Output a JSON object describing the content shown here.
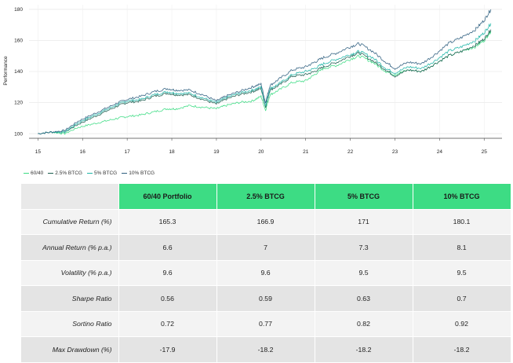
{
  "chart_data": {
    "type": "line",
    "ylabel": "Performance",
    "xlabel": "",
    "ylim": [
      97,
      183
    ],
    "xlim": [
      14.8,
      25.4
    ],
    "y_ticks": [
      100,
      120,
      140,
      160,
      180
    ],
    "x_ticks": [
      15,
      16,
      17,
      18,
      19,
      20,
      21,
      22,
      23,
      24,
      25
    ],
    "x_tick_labels": [
      "15",
      "16",
      "17",
      "18",
      "19",
      "20",
      "21",
      "22",
      "23",
      "24",
      "25"
    ],
    "grid": true,
    "legend_position": "bottom-left",
    "base_value": 100,
    "x": [
      15.0,
      15.3,
      15.6,
      15.9,
      16.2,
      16.5,
      16.8,
      17.0,
      17.3,
      17.6,
      17.9,
      18.1,
      18.4,
      18.7,
      19.0,
      19.2,
      19.5,
      19.8,
      20.0,
      20.1,
      20.2,
      20.4,
      20.7,
      21.0,
      21.2,
      21.4,
      21.7,
      22.0,
      22.2,
      22.5,
      22.8,
      23.0,
      23.3,
      23.6,
      23.9,
      24.2,
      24.5,
      24.8,
      25.0,
      25.15
    ],
    "series": [
      {
        "name": "60/40",
        "color": "#3ddc84",
        "values": [
          100,
          101,
          100,
          104,
          106,
          108,
          110,
          111,
          112,
          114,
          116,
          116,
          118,
          117,
          116,
          118,
          120,
          121,
          124,
          115,
          125,
          128,
          133,
          134,
          138,
          142,
          144,
          148,
          150,
          146,
          140,
          138,
          141,
          140,
          145,
          150,
          153,
          156,
          160,
          166
        ]
      },
      {
        "name": "2.5% BTCG",
        "color": "#1b5d4f",
        "values": [
          100,
          101,
          101,
          106,
          110,
          114,
          118,
          120,
          121,
          124,
          126,
          125,
          125,
          122,
          119,
          122,
          125,
          127,
          129,
          117,
          128,
          131,
          137,
          138,
          140,
          143,
          146,
          150,
          152,
          147,
          141,
          137,
          141,
          140,
          145,
          150,
          153,
          157,
          161,
          167
        ]
      },
      {
        "name": "5% BTCG",
        "color": "#1fb5a8",
        "values": [
          100,
          101,
          101,
          107,
          111,
          115,
          119,
          121,
          122,
          125,
          127,
          126,
          126,
          123,
          120,
          123,
          126,
          128,
          130,
          118,
          129,
          132,
          138,
          140,
          142,
          145,
          148,
          151,
          153,
          149,
          142,
          139,
          143,
          142,
          147,
          153,
          156,
          160,
          165,
          171
        ]
      },
      {
        "name": "10% BTCG",
        "color": "#2e5f7f",
        "values": [
          100,
          101,
          102,
          108,
          112,
          116,
          120,
          122,
          124,
          127,
          129,
          128,
          128,
          125,
          121,
          124,
          127,
          130,
          132,
          120,
          131,
          135,
          141,
          143,
          146,
          149,
          152,
          156,
          158,
          153,
          146,
          142,
          146,
          145,
          151,
          158,
          162,
          167,
          173,
          180
        ]
      }
    ]
  },
  "table": {
    "headers": [
      "",
      "60/40 Portfolio",
      "2.5% BTCG",
      "5% BTCG",
      "10% BTCG"
    ],
    "rows": [
      {
        "label": "Cumulative Return (%)",
        "values": [
          "165.3",
          "166.9",
          "171",
          "180.1"
        ]
      },
      {
        "label": "Annual Return (% p.a.)",
        "values": [
          "6.6",
          "7",
          "7.3",
          "8.1"
        ]
      },
      {
        "label": "Volatility (% p.a.)",
        "values": [
          "9.6",
          "9.6",
          "9.5",
          "9.5"
        ]
      },
      {
        "label": "Sharpe Ratio",
        "values": [
          "0.56",
          "0.59",
          "0.63",
          "0.7"
        ]
      },
      {
        "label": "Sortino Ratio",
        "values": [
          "0.72",
          "0.77",
          "0.82",
          "0.92"
        ]
      },
      {
        "label": "Max Drawdown (%)",
        "values": [
          "-17.9",
          "-18.2",
          "-18.2",
          "-18.2"
        ]
      }
    ]
  },
  "colors": {
    "header_green": "#3ddc84",
    "row_light": "#f3f3f3",
    "row_dark": "#e4e4e4"
  }
}
